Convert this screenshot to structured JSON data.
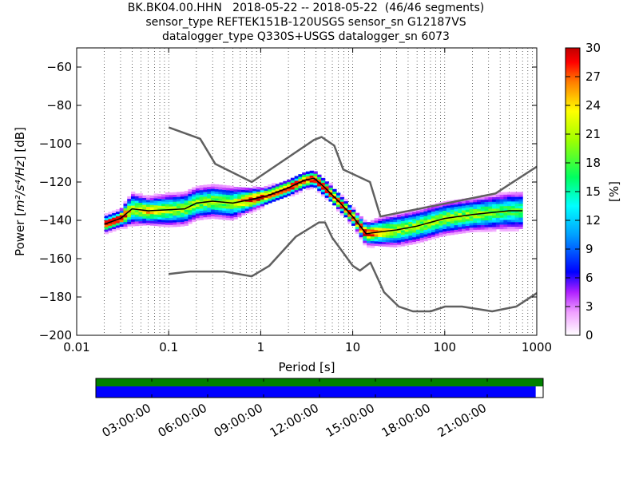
{
  "title": {
    "line1": "BK.BK04.00.HHN   2018-05-22 -- 2018-05-22  (46/46 segments)",
    "line2": "sensor_type REFTEK151B-120USGS sensor_sn G12187VS",
    "line3": "datalogger_type Q330S+USGS datalogger_sn 6073"
  },
  "chart_data": [
    {
      "type": "heatmap",
      "xlabel": "Period [s]",
      "ylabel": "Power [m²/s⁴/Hz] [dB]",
      "ylabel_parts": {
        "prefix": "Power [",
        "unit": "m²/s⁴/Hz",
        "suffix": "] [dB]"
      },
      "xscale": "log",
      "xlim": [
        0.01,
        1000
      ],
      "ylim": [
        -200,
        -50
      ],
      "xtick_values": [
        0.01,
        0.1,
        1,
        10,
        100,
        1000
      ],
      "xtick_labels": [
        "0.01",
        "0.1",
        "1",
        "10",
        "100",
        "1000"
      ],
      "ytick_values": [
        -200,
        -180,
        -160,
        -140,
        -120,
        -100,
        -80,
        -60
      ],
      "ytick_labels": [
        "−200",
        "−180",
        "−160",
        "−140",
        "−120",
        "−100",
        "−80",
        "−60"
      ],
      "grid": "vertical dotted",
      "colorbar": {
        "label": "[%]",
        "range": [
          0,
          30
        ],
        "tick_values": [
          0,
          3,
          6,
          9,
          12,
          15,
          18,
          21,
          24,
          27,
          30
        ],
        "tick_labels": [
          "0",
          "3",
          "6",
          "9",
          "12",
          "15",
          "18",
          "21",
          "24",
          "27",
          "30"
        ],
        "colormap": [
          "#ffffff",
          "#b020ff",
          "#0000ff",
          "#00c8ff",
          "#00ff80",
          "#80ff00",
          "#ffff00",
          "#ff8000",
          "#ff0000",
          "#c00000"
        ]
      },
      "series": [
        {
          "role": "noise model high",
          "color": "#606060",
          "x": [
            0.1,
            0.22,
            0.32,
            0.8,
            3.8,
            4.6,
            6.3,
            7.9,
            15.4,
            20,
            354.8,
            1000
          ],
          "y": [
            -91.5,
            -97.4,
            -110.5,
            -120,
            -98,
            -96.5,
            -101,
            -113.5,
            -120,
            -138,
            -126,
            -112
          ]
        },
        {
          "role": "noise model low",
          "color": "#606060",
          "x": [
            0.1,
            0.17,
            0.4,
            0.8,
            1.24,
            2.4,
            4.3,
            5.0,
            6.0,
            10.0,
            12.0,
            15.6,
            21.9,
            31.6,
            45,
            70,
            101,
            154,
            328,
            600,
            1000
          ],
          "y": [
            -168,
            -166.7,
            -166.7,
            -169.2,
            -163.7,
            -148.6,
            -141.1,
            -141.1,
            -149.1,
            -163.7,
            -166.2,
            -162.1,
            -177.5,
            -185,
            -187.5,
            -187.5,
            -185,
            -185,
            -187.5,
            -185,
            -178
          ]
        },
        {
          "role": "mode",
          "color": "#000000",
          "x": [
            0.02,
            0.03,
            0.04,
            0.06,
            0.1,
            0.15,
            0.2,
            0.3,
            0.5,
            0.8,
            1.2,
            2,
            3,
            3.8,
            5,
            7,
            10,
            14,
            20,
            30,
            50,
            100,
            200,
            500,
            700
          ],
          "y": [
            -142,
            -139,
            -134,
            -135,
            -134.5,
            -134,
            -131,
            -130,
            -131,
            -129,
            -127,
            -123,
            -119,
            -118,
            -123,
            -130,
            -138,
            -147,
            -146,
            -145,
            -143,
            -139,
            -137,
            -135,
            -135
          ]
        }
      ],
      "density": {
        "x": [
          0.02,
          0.03,
          0.04,
          0.06,
          0.1,
          0.15,
          0.2,
          0.3,
          0.5,
          0.8,
          1.2,
          2,
          3,
          3.8,
          5,
          7,
          10,
          14,
          20,
          30,
          50,
          100,
          200,
          500,
          700
        ],
        "spread_db": [
          3,
          3,
          6,
          5,
          6,
          6,
          6,
          6,
          6,
          4,
          3,
          3,
          3,
          3,
          3,
          3,
          3,
          4,
          5,
          6,
          6,
          6,
          6,
          7,
          7
        ]
      }
    },
    {
      "type": "timeline",
      "segments": [
        {
          "color": "#008000",
          "start_hours": 0,
          "end_hours": 24
        },
        {
          "color": "#0000ff",
          "start_hours": 0,
          "end_hours": 23.6
        }
      ],
      "xlim_hours": [
        0,
        24
      ],
      "tick_hours": [
        3,
        6,
        9,
        12,
        15,
        18,
        21
      ],
      "tick_labels": [
        "03:00:00",
        "06:00:00",
        "09:00:00",
        "12:00:00",
        "15:00:00",
        "18:00:00",
        "21:00:00"
      ]
    }
  ]
}
